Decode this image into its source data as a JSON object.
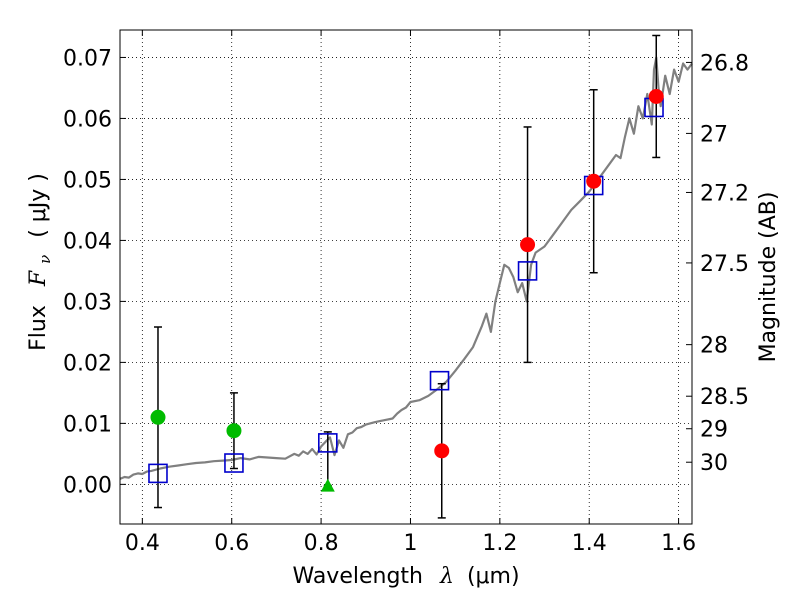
{
  "chart_data": {
    "type": "scatter",
    "xlabel_prefix": "Wavelength",
    "xlabel_symbol": "λ",
    "xlabel_unit": "(μm)",
    "ylabel_prefix": "Flux",
    "ylabel_symbol": "F",
    "ylabel_subscript": "ν",
    "ylabel_unit": "( μJy )",
    "y2label": "Magnitude (AB)",
    "xlim": [
      0.35,
      1.63
    ],
    "ylim": [
      -0.0065,
      0.0745
    ],
    "x_ticks": [
      0.4,
      0.6,
      0.8,
      1.0,
      1.2,
      1.4,
      1.6
    ],
    "x_tick_labels": [
      "0.4",
      "0.6",
      "0.8",
      "1",
      "1.2",
      "1.4",
      "1.6"
    ],
    "y_ticks": [
      0.0,
      0.01,
      0.02,
      0.03,
      0.04,
      0.05,
      0.06,
      0.07
    ],
    "y_tick_labels": [
      "0.00",
      "0.01",
      "0.02",
      "0.03",
      "0.04",
      "0.05",
      "0.06",
      "0.07"
    ],
    "mag_ticks": [
      "26.8",
      "27",
      "27.2",
      "27.5",
      "28",
      "28.5",
      "29",
      "30"
    ],
    "grid": true,
    "colors": {
      "sed": "#808080",
      "model_box": "#0000cc",
      "detection": "#ff0000",
      "low_snr": "#00bb00",
      "errorbar": "#000000"
    },
    "sed_curve": [
      [
        0.35,
        0.0009
      ],
      [
        0.36,
        0.0012
      ],
      [
        0.37,
        0.0011
      ],
      [
        0.38,
        0.0016
      ],
      [
        0.39,
        0.0018
      ],
      [
        0.4,
        0.0017
      ],
      [
        0.41,
        0.0021
      ],
      [
        0.42,
        0.0022
      ],
      [
        0.44,
        0.0026
      ],
      [
        0.46,
        0.0029
      ],
      [
        0.48,
        0.0031
      ],
      [
        0.5,
        0.0033
      ],
      [
        0.52,
        0.0035
      ],
      [
        0.54,
        0.0036
      ],
      [
        0.56,
        0.0038
      ],
      [
        0.58,
        0.0039
      ],
      [
        0.6,
        0.004
      ],
      [
        0.62,
        0.0043
      ],
      [
        0.64,
        0.0041
      ],
      [
        0.66,
        0.0045
      ],
      [
        0.68,
        0.0044
      ],
      [
        0.7,
        0.0043
      ],
      [
        0.72,
        0.0042
      ],
      [
        0.74,
        0.005
      ],
      [
        0.75,
        0.0047
      ],
      [
        0.76,
        0.0054
      ],
      [
        0.77,
        0.005
      ],
      [
        0.78,
        0.0058
      ],
      [
        0.79,
        0.0049
      ],
      [
        0.8,
        0.0062
      ],
      [
        0.81,
        0.007
      ],
      [
        0.82,
        0.0077
      ],
      [
        0.83,
        0.0048
      ],
      [
        0.84,
        0.0072
      ],
      [
        0.85,
        0.006
      ],
      [
        0.86,
        0.0082
      ],
      [
        0.87,
        0.0085
      ],
      [
        0.88,
        0.0092
      ],
      [
        0.89,
        0.0094
      ],
      [
        0.9,
        0.0098
      ],
      [
        0.92,
        0.0102
      ],
      [
        0.94,
        0.0105
      ],
      [
        0.96,
        0.0108
      ],
      [
        0.97,
        0.0116
      ],
      [
        0.98,
        0.0122
      ],
      [
        0.99,
        0.0126
      ],
      [
        1.0,
        0.0135
      ],
      [
        1.02,
        0.0138
      ],
      [
        1.04,
        0.0145
      ],
      [
        1.06,
        0.0156
      ],
      [
        1.08,
        0.0168
      ],
      [
        1.1,
        0.0186
      ],
      [
        1.12,
        0.0205
      ],
      [
        1.14,
        0.0225
      ],
      [
        1.16,
        0.026
      ],
      [
        1.17,
        0.028
      ],
      [
        1.18,
        0.025
      ],
      [
        1.19,
        0.03
      ],
      [
        1.2,
        0.033
      ],
      [
        1.21,
        0.036
      ],
      [
        1.22,
        0.0355
      ],
      [
        1.23,
        0.034
      ],
      [
        1.24,
        0.0315
      ],
      [
        1.25,
        0.033
      ],
      [
        1.26,
        0.03
      ],
      [
        1.27,
        0.036
      ],
      [
        1.28,
        0.038
      ],
      [
        1.3,
        0.039
      ],
      [
        1.32,
        0.041
      ],
      [
        1.34,
        0.043
      ],
      [
        1.36,
        0.045
      ],
      [
        1.38,
        0.0465
      ],
      [
        1.4,
        0.048
      ],
      [
        1.42,
        0.05
      ],
      [
        1.44,
        0.052
      ],
      [
        1.46,
        0.054
      ],
      [
        1.47,
        0.0535
      ],
      [
        1.48,
        0.057
      ],
      [
        1.49,
        0.06
      ],
      [
        1.5,
        0.0575
      ],
      [
        1.51,
        0.062
      ],
      [
        1.52,
        0.06
      ],
      [
        1.53,
        0.064
      ],
      [
        1.54,
        0.059
      ],
      [
        1.545,
        0.068
      ],
      [
        1.55,
        0.07
      ],
      [
        1.555,
        0.065
      ],
      [
        1.56,
        0.062
      ],
      [
        1.57,
        0.067
      ],
      [
        1.58,
        0.064
      ],
      [
        1.59,
        0.068
      ],
      [
        1.6,
        0.066
      ],
      [
        1.61,
        0.069
      ],
      [
        1.62,
        0.068
      ],
      [
        1.63,
        0.069
      ]
    ],
    "model_boxes": [
      {
        "x": 0.435,
        "y": 0.0018
      },
      {
        "x": 0.605,
        "y": 0.0035
      },
      {
        "x": 0.815,
        "y": 0.0068
      },
      {
        "x": 1.065,
        "y": 0.017
      },
      {
        "x": 1.262,
        "y": 0.035
      },
      {
        "x": 1.41,
        "y": 0.049
      },
      {
        "x": 1.545,
        "y": 0.0618
      }
    ],
    "detections": [
      {
        "x": 1.07,
        "y": 0.0055,
        "err_low": 0.011,
        "err_high": 0.011
      },
      {
        "x": 1.262,
        "y": 0.0393,
        "err_low": 0.0193,
        "err_high": 0.0193
      },
      {
        "x": 1.41,
        "y": 0.0497,
        "err_low": 0.015,
        "err_high": 0.015
      },
      {
        "x": 1.55,
        "y": 0.0636,
        "err_low": 0.01,
        "err_high": 0.01
      }
    ],
    "low_snr_points": [
      {
        "x": 0.435,
        "y": 0.011,
        "err_low": 0.0148,
        "err_high": 0.0148
      },
      {
        "x": 0.605,
        "y": 0.0088,
        "err_low": 0.0062,
        "err_high": 0.0062
      }
    ],
    "upper_limit": {
      "x": 0.815,
      "y": -0.0002,
      "err_low": 0.0,
      "err_high": 0.0088
    }
  }
}
